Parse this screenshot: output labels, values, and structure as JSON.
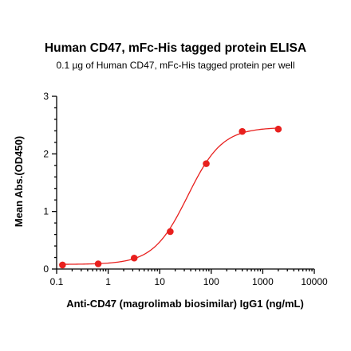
{
  "chart_data": {
    "type": "scatter",
    "title": "Human CD47, mFc-His tagged protein ELISA",
    "subtitle": "0.1 µg of Human CD47, mFc-His tagged protein per well",
    "xlabel": "Anti-CD47 (magrolimab biosimilar) IgG1 (ng/mL)",
    "ylabel": "Mean Abs.(OD450)",
    "x_scale": "log",
    "xlim": [
      0.1,
      10000
    ],
    "ylim": [
      0,
      3
    ],
    "x_ticks": [
      "0.1",
      "1",
      "10",
      "100",
      "1000",
      "10000"
    ],
    "y_ticks": [
      "0",
      "1",
      "2",
      "3"
    ],
    "color": "#e8201e",
    "points": {
      "x": [
        0.13,
        0.64,
        3.2,
        16,
        80,
        400,
        2000
      ],
      "y": [
        0.07,
        0.09,
        0.19,
        0.65,
        1.83,
        2.39,
        2.43
      ]
    },
    "fit_curve": {
      "model": "4PL",
      "bottom": 0.08,
      "top": 2.46,
      "ec50": 35,
      "hill": 1.3
    }
  }
}
